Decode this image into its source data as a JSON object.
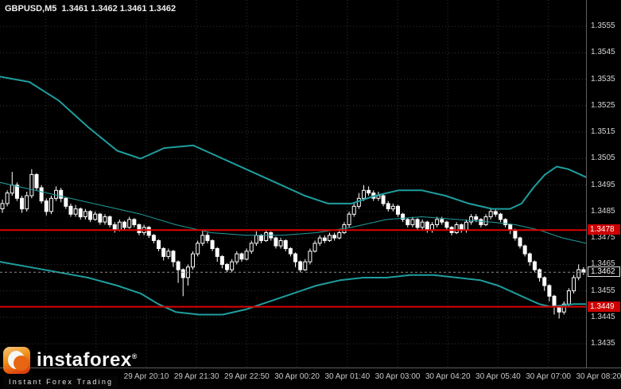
{
  "title": {
    "symbol": "GBPUSD,M5",
    "ohlc": "1.3461 1.3462 1.3461 1.3462"
  },
  "colors": {
    "background": "#000000",
    "candle_up_fill": "#000000",
    "candle_down_fill": "#ffffff",
    "candle_outline": "#ffffff",
    "band": "#1f9e9e",
    "grid": "#343434",
    "red_line": "#dd0000",
    "badge_red_bg": "#cc0000",
    "axis_text": "#d6d6d6",
    "watermark_orange": "#f68b1f"
  },
  "chart_data": {
    "type": "candlestick",
    "title": "GBPUSD,M5",
    "symbol": "GBPUSD",
    "timeframe": "M5",
    "quote_ohlc": {
      "open": "1.3461",
      "high": "1.3462",
      "low": "1.3461",
      "close": "1.3462"
    },
    "grid": true,
    "legend_position": "none",
    "price_base": 1.34,
    "pip_divisor": 10000,
    "y_axis": {
      "top_price": 1.3565,
      "bottom_price": 1.3426,
      "ticks": [
        "1.3555",
        "1.3545",
        "1.3535",
        "1.3525",
        "1.3515",
        "1.3505",
        "1.3495",
        "1.3485",
        "1.3475",
        "1.3465",
        "1.3455",
        "1.3445",
        "1.3435"
      ]
    },
    "x_axis": {
      "ticks": [
        "29 Apr 20:10",
        "29 Apr 21:30",
        "29 Apr 22:50",
        "30 Apr 00:20",
        "30 Apr 01:40",
        "30 Apr 03:00",
        "30 Apr 04:20",
        "30 Apr 05:40",
        "30 Apr 07:00",
        "30 Apr 08:20"
      ]
    },
    "candles_ohlc_pips": [
      [
        86,
        89.5,
        84.5,
        88
      ],
      [
        88,
        93,
        87,
        92
      ],
      [
        92,
        100,
        91,
        95
      ],
      [
        95,
        96,
        89,
        90
      ],
      [
        90,
        91,
        84.5,
        86
      ],
      [
        86,
        92.5,
        85,
        91
      ],
      [
        91,
        101,
        90,
        99
      ],
      [
        99,
        99.5,
        93,
        94
      ],
      [
        94,
        95,
        88,
        89
      ],
      [
        89,
        90,
        83.5,
        85
      ],
      [
        85,
        91,
        84,
        90
      ],
      [
        90,
        94.5,
        89,
        93
      ],
      [
        93,
        94,
        88.5,
        90
      ],
      [
        90,
        90.5,
        86,
        87
      ],
      [
        87,
        88,
        83,
        84
      ],
      [
        84,
        87.5,
        83,
        86
      ],
      [
        86,
        86.5,
        82,
        83
      ],
      [
        83,
        86,
        82,
        85
      ],
      [
        85,
        85.5,
        81,
        82
      ],
      [
        82,
        85,
        81.5,
        84
      ],
      [
        84,
        84.5,
        80,
        81
      ],
      [
        81,
        84,
        80,
        83
      ],
      [
        83,
        83.5,
        79,
        80
      ],
      [
        80,
        81,
        77,
        78
      ],
      [
        78,
        82,
        77.5,
        81
      ],
      [
        81,
        81.5,
        78,
        79
      ],
      [
        79,
        83,
        78.5,
        82
      ],
      [
        82,
        82.5,
        79,
        80
      ],
      [
        80,
        80.5,
        76,
        77
      ],
      [
        77,
        80,
        76,
        79
      ],
      [
        79,
        79.5,
        75,
        76
      ],
      [
        76,
        76.5,
        73,
        74
      ],
      [
        74,
        74.5,
        70,
        71
      ],
      [
        71,
        71.5,
        66.5,
        68
      ],
      [
        68,
        71,
        67,
        70
      ],
      [
        70,
        70.5,
        64,
        66
      ],
      [
        66,
        66.5,
        58,
        63
      ],
      [
        63,
        63.5,
        53,
        60
      ],
      [
        60,
        65,
        57,
        64
      ],
      [
        64,
        70,
        63,
        69
      ],
      [
        69,
        74,
        68,
        73
      ],
      [
        73,
        78,
        72,
        76
      ],
      [
        76,
        77,
        73,
        74
      ],
      [
        74,
        74.5,
        70,
        71
      ],
      [
        71,
        71.5,
        66,
        68
      ],
      [
        68,
        68.5,
        63.5,
        65
      ],
      [
        65,
        65.5,
        62,
        63
      ],
      [
        63,
        67,
        62,
        66
      ],
      [
        66,
        70,
        65,
        69
      ],
      [
        69,
        69.5,
        66,
        67
      ],
      [
        67,
        71,
        66.5,
        70
      ],
      [
        70,
        74,
        69,
        73
      ],
      [
        73,
        77.5,
        72,
        76
      ],
      [
        76,
        76.5,
        73,
        74
      ],
      [
        74,
        78,
        73.5,
        77
      ],
      [
        77,
        77.5,
        74,
        75
      ],
      [
        75,
        75.5,
        71,
        72
      ],
      [
        72,
        75,
        71,
        74
      ],
      [
        74,
        74.5,
        70,
        71
      ],
      [
        71,
        71.5,
        68,
        69
      ],
      [
        69,
        69.5,
        64,
        66
      ],
      [
        66,
        66.5,
        62,
        63
      ],
      [
        63,
        67,
        62.5,
        66
      ],
      [
        66,
        71,
        65,
        70
      ],
      [
        70,
        74,
        69.5,
        73
      ],
      [
        73,
        76,
        72,
        75
      ],
      [
        75,
        76,
        73,
        74
      ],
      [
        74,
        77,
        73.5,
        76
      ],
      [
        76,
        77,
        74,
        75
      ],
      [
        75,
        78,
        74.5,
        77
      ],
      [
        77,
        81,
        76.5,
        80
      ],
      [
        80,
        85,
        79,
        84
      ],
      [
        84,
        88.5,
        83,
        87
      ],
      [
        87,
        92,
        86,
        90
      ],
      [
        90,
        95,
        89,
        93
      ],
      [
        93,
        94.5,
        91,
        92
      ],
      [
        92,
        93,
        89,
        90
      ],
      [
        90,
        92.5,
        89,
        91
      ],
      [
        91,
        91.5,
        87,
        88
      ],
      [
        88,
        89,
        85,
        86
      ],
      [
        86,
        88,
        85,
        87
      ],
      [
        87,
        87.5,
        83,
        84
      ],
      [
        84,
        84.5,
        81,
        82
      ],
      [
        82,
        82.5,
        79,
        80
      ],
      [
        80,
        83,
        79,
        82
      ],
      [
        82,
        82.5,
        78,
        79
      ],
      [
        79,
        82,
        78,
        81
      ],
      [
        81,
        81.5,
        77,
        78
      ],
      [
        78,
        81,
        77,
        80
      ],
      [
        80,
        83,
        79,
        82
      ],
      [
        82,
        83,
        80,
        81
      ],
      [
        81,
        81.5,
        78,
        79
      ],
      [
        79,
        79.5,
        76,
        77
      ],
      [
        77,
        81,
        76.5,
        80
      ],
      [
        80,
        80.5,
        77,
        78
      ],
      [
        78,
        82,
        77,
        81
      ],
      [
        81,
        84,
        80,
        83
      ],
      [
        83,
        84,
        81,
        82
      ],
      [
        82,
        82.5,
        79,
        80
      ],
      [
        80,
        84,
        79.5,
        83
      ],
      [
        83,
        86,
        82,
        85
      ],
      [
        85,
        86,
        83,
        84
      ],
      [
        84,
        84.5,
        81,
        82
      ],
      [
        82,
        82.5,
        79,
        80
      ],
      [
        80,
        80.5,
        76.5,
        78
      ],
      [
        78,
        78.5,
        74,
        75
      ],
      [
        75,
        75.5,
        71,
        72
      ],
      [
        72,
        72.5,
        68,
        69
      ],
      [
        69,
        69.5,
        64.5,
        66
      ],
      [
        66,
        66.5,
        62,
        63
      ],
      [
        63,
        63.5,
        58.5,
        60
      ],
      [
        60,
        60.5,
        55,
        57
      ],
      [
        57,
        57.5,
        51,
        53
      ],
      [
        53,
        53.5,
        46,
        49
      ],
      [
        49,
        49.5,
        44.5,
        47
      ],
      [
        47,
        51,
        46,
        50
      ],
      [
        50,
        56,
        49,
        55
      ],
      [
        55,
        61,
        54,
        60
      ],
      [
        60,
        65,
        59,
        63
      ],
      [
        63,
        64,
        61,
        62
      ]
    ],
    "bollinger_bands": {
      "upper": [
        [
          0,
          136
        ],
        [
          0.05,
          134
        ],
        [
          0.1,
          127
        ],
        [
          0.15,
          117
        ],
        [
          0.2,
          108
        ],
        [
          0.24,
          105
        ],
        [
          0.28,
          109
        ],
        [
          0.33,
          110
        ],
        [
          0.37,
          106
        ],
        [
          0.42,
          101
        ],
        [
          0.47,
          96
        ],
        [
          0.52,
          91
        ],
        [
          0.56,
          88
        ],
        [
          0.6,
          88
        ],
        [
          0.64,
          91
        ],
        [
          0.68,
          93
        ],
        [
          0.72,
          93
        ],
        [
          0.76,
          91
        ],
        [
          0.8,
          88
        ],
        [
          0.84,
          86
        ],
        [
          0.87,
          86
        ],
        [
          0.89,
          88
        ],
        [
          0.91,
          94
        ],
        [
          0.93,
          99
        ],
        [
          0.95,
          102
        ],
        [
          0.97,
          101
        ],
        [
          1,
          98
        ]
      ],
      "middle": [
        [
          0,
          96
        ],
        [
          0.06,
          93
        ],
        [
          0.12,
          90
        ],
        [
          0.18,
          87
        ],
        [
          0.24,
          84
        ],
        [
          0.3,
          80
        ],
        [
          0.36,
          77
        ],
        [
          0.42,
          76
        ],
        [
          0.48,
          76
        ],
        [
          0.54,
          77
        ],
        [
          0.6,
          79
        ],
        [
          0.66,
          82
        ],
        [
          0.72,
          83
        ],
        [
          0.78,
          82
        ],
        [
          0.84,
          81
        ],
        [
          0.88,
          80
        ],
        [
          0.92,
          78
        ],
        [
          0.96,
          75
        ],
        [
          1,
          73
        ]
      ],
      "lower": [
        [
          0,
          66
        ],
        [
          0.05,
          64
        ],
        [
          0.1,
          62
        ],
        [
          0.15,
          60
        ],
        [
          0.2,
          57
        ],
        [
          0.24,
          54
        ],
        [
          0.27,
          50
        ],
        [
          0.3,
          47
        ],
        [
          0.34,
          46
        ],
        [
          0.38,
          46
        ],
        [
          0.42,
          48
        ],
        [
          0.46,
          51
        ],
        [
          0.5,
          54
        ],
        [
          0.54,
          57
        ],
        [
          0.58,
          59
        ],
        [
          0.62,
          60
        ],
        [
          0.66,
          60
        ],
        [
          0.7,
          61
        ],
        [
          0.74,
          61
        ],
        [
          0.78,
          60
        ],
        [
          0.82,
          59
        ],
        [
          0.85,
          57
        ],
        [
          0.88,
          54
        ],
        [
          0.9,
          52
        ],
        [
          0.92,
          50
        ],
        [
          0.94,
          49
        ],
        [
          0.96,
          49.5
        ],
        [
          0.98,
          50
        ],
        [
          1,
          50
        ]
      ]
    },
    "horizontal_lines": [
      {
        "price": 1.3478,
        "label": "1.3478",
        "role": "resistance"
      },
      {
        "price": 1.3449,
        "label": "1.3449",
        "role": "support"
      }
    ],
    "current_price": {
      "price": 1.3462,
      "label": "1.3462"
    }
  },
  "watermark": {
    "brand": "instaforex",
    "reg": "®",
    "tagline": "Instant Forex Trading"
  }
}
